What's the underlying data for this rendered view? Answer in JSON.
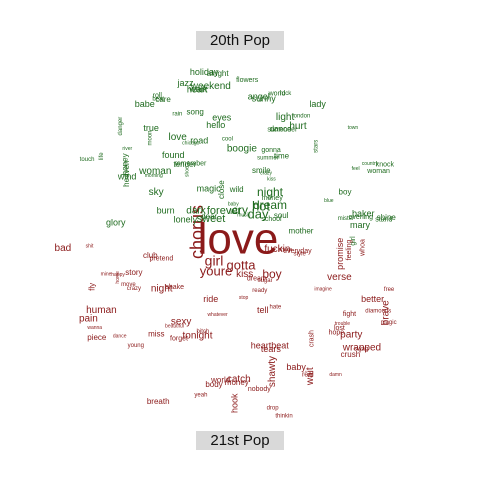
{
  "panels": {
    "top_label": "20th Pop",
    "bottom_label": "21st Pop"
  },
  "colors": {
    "top_words": "#1f6b1f",
    "bottom_words": "#8b1a1a",
    "label_bg": "#d9d9d9"
  },
  "top_words": [
    "night",
    "dream",
    "hot",
    "day",
    "cry",
    "dark",
    "forever",
    "sweet",
    "tender",
    "rain",
    "heart",
    "smile",
    "town",
    "cool",
    "knock",
    "kiss",
    "mary",
    "time",
    "close",
    "road",
    "fire",
    "dance",
    "river",
    "remember",
    "feel",
    "found",
    "care",
    "walk",
    "life",
    "true",
    "babe",
    "burn",
    "shine",
    "gonna",
    "morning",
    "angel",
    "blue",
    "touch",
    "eyes",
    "music",
    "song",
    "sky",
    "woman",
    "school",
    "holiday",
    "beat",
    "honey",
    "country",
    "alright",
    "summer",
    "sunny",
    "lady",
    "danger",
    "lonely",
    "moon",
    "wind",
    "rock",
    "roll",
    "stand",
    "glory",
    "stars",
    "light",
    "weekend",
    "magic",
    "love",
    "girl",
    "boy",
    "world",
    "baby",
    "shoe",
    "heaven",
    "money",
    "chicago",
    "london",
    "soul",
    "crazy",
    "woman",
    "dear",
    "flowers",
    "surrender",
    "evening",
    "hurt",
    "mother",
    "boogie",
    "mister",
    "hello",
    "jazz",
    "wild",
    "baker"
  ],
  "bottom_words": [
    "love",
    "chorus",
    "youre",
    "gotta",
    "girl",
    "boy",
    "fly",
    "feeling",
    "miss",
    "beautiful",
    "breath",
    "wanna",
    "move",
    "tonight",
    "baby",
    "damn",
    "drop",
    "hate",
    "body",
    "crazy",
    "ride",
    "shit",
    "bad",
    "real",
    "sexy",
    "heartbeat",
    "pain",
    "happy",
    "hook",
    "world",
    "fight",
    "shawty",
    "party",
    "forget",
    "stop",
    "kiss",
    "whoa",
    "swag",
    "lost",
    "dance",
    "club",
    "money",
    "bitch",
    "trouble",
    "imagine",
    "promise",
    "wait",
    "mine",
    "verse",
    "everyday",
    "phone",
    "human",
    "diamonds",
    "wrapped",
    "sugar",
    "pretend",
    "crash",
    "catch",
    "yeah",
    "young",
    "dream",
    "tell",
    "nobody",
    "whatever",
    "crush",
    "style",
    "hope",
    "ready",
    "magic",
    "fuckin",
    "night",
    "story",
    "shake",
    "free",
    "brave",
    "home",
    "thinkin",
    "better",
    "piece",
    "tears"
  ]
}
